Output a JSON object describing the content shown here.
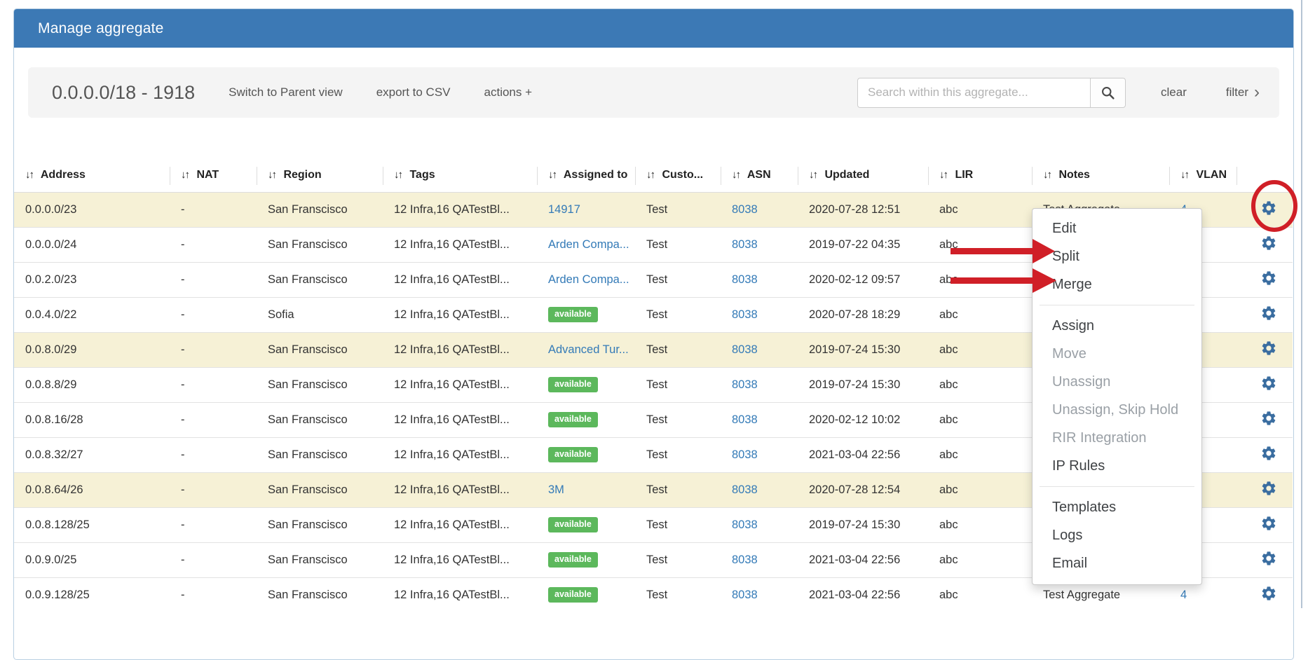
{
  "panel": {
    "title": "Manage aggregate"
  },
  "toolbar": {
    "aggregate_label": "0.0.0.0/18 - 1918",
    "switch_view_label": "Switch to Parent view",
    "export_csv_label": "export to CSV",
    "actions_label": "actions +",
    "search_placeholder": "Search within this aggregate...",
    "clear_label": "clear",
    "filter_label": "filter",
    "filter_chevron": "›"
  },
  "table": {
    "sort_icon": "↓↑",
    "columns": [
      {
        "label": "Address",
        "key": "address"
      },
      {
        "label": "NAT",
        "key": "nat"
      },
      {
        "label": "Region",
        "key": "region"
      },
      {
        "label": "Tags",
        "key": "tags"
      },
      {
        "label": "Assigned to",
        "key": "assigned_to"
      },
      {
        "label": "Custo...",
        "key": "customer"
      },
      {
        "label": "ASN",
        "key": "asn"
      },
      {
        "label": "Updated",
        "key": "updated"
      },
      {
        "label": "LIR",
        "key": "lir"
      },
      {
        "label": "Notes",
        "key": "notes"
      },
      {
        "label": "VLAN",
        "key": "vlan"
      }
    ],
    "rows": [
      {
        "address": "0.0.0.0/23",
        "nat": "-",
        "region": "San Franscisco",
        "tags": "12 Infra,16 QATestBl...",
        "assigned": {
          "kind": "link",
          "text": "14917"
        },
        "customer": "Test",
        "asn": "8038",
        "updated": "2020-07-28 12:51",
        "lir": "abc",
        "notes": "Test Aggregate",
        "vlan": "4",
        "highlighted": true
      },
      {
        "address": "0.0.0.0/24",
        "nat": "-",
        "region": "San Franscisco",
        "tags": "12 Infra,16 QATestBl...",
        "assigned": {
          "kind": "link",
          "text": "Arden Compa..."
        },
        "customer": "Test",
        "asn": "8038",
        "updated": "2019-07-22 04:35",
        "lir": "abc",
        "notes": "",
        "vlan": "",
        "highlighted": false
      },
      {
        "address": "0.0.2.0/23",
        "nat": "-",
        "region": "San Franscisco",
        "tags": "12 Infra,16 QATestBl...",
        "assigned": {
          "kind": "link",
          "text": "Arden Compa..."
        },
        "customer": "Test",
        "asn": "8038",
        "updated": "2020-02-12 09:57",
        "lir": "abc",
        "notes": "",
        "vlan": "",
        "highlighted": false
      },
      {
        "address": "0.0.4.0/22",
        "nat": "-",
        "region": "Sofia",
        "tags": "12 Infra,16 QATestBl...",
        "assigned": {
          "kind": "badge",
          "text": "available"
        },
        "customer": "Test",
        "asn": "8038",
        "updated": "2020-07-28 18:29",
        "lir": "abc",
        "notes": "",
        "vlan": "",
        "highlighted": false
      },
      {
        "address": "0.0.8.0/29",
        "nat": "-",
        "region": "San Franscisco",
        "tags": "12 Infra,16 QATestBl...",
        "assigned": {
          "kind": "link",
          "text": "Advanced Tur..."
        },
        "customer": "Test",
        "asn": "8038",
        "updated": "2019-07-24 15:30",
        "lir": "abc",
        "notes": "",
        "vlan": "",
        "highlighted": true
      },
      {
        "address": "0.0.8.8/29",
        "nat": "-",
        "region": "San Franscisco",
        "tags": "12 Infra,16 QATestBl...",
        "assigned": {
          "kind": "badge",
          "text": "available"
        },
        "customer": "Test",
        "asn": "8038",
        "updated": "2019-07-24 15:30",
        "lir": "abc",
        "notes": "",
        "vlan": "",
        "highlighted": false
      },
      {
        "address": "0.0.8.16/28",
        "nat": "-",
        "region": "San Franscisco",
        "tags": "12 Infra,16 QATestBl...",
        "assigned": {
          "kind": "badge",
          "text": "available"
        },
        "customer": "Test",
        "asn": "8038",
        "updated": "2020-02-12 10:02",
        "lir": "abc",
        "notes": "",
        "vlan": "",
        "highlighted": false
      },
      {
        "address": "0.0.8.32/27",
        "nat": "-",
        "region": "San Franscisco",
        "tags": "12 Infra,16 QATestBl...",
        "assigned": {
          "kind": "badge",
          "text": "available"
        },
        "customer": "Test",
        "asn": "8038",
        "updated": "2021-03-04 22:56",
        "lir": "abc",
        "notes": "",
        "vlan": "",
        "highlighted": false
      },
      {
        "address": "0.0.8.64/26",
        "nat": "-",
        "region": "San Franscisco",
        "tags": "12 Infra,16 QATestBl...",
        "assigned": {
          "kind": "link",
          "text": "3M"
        },
        "customer": "Test",
        "asn": "8038",
        "updated": "2020-07-28 12:54",
        "lir": "abc",
        "notes": "",
        "vlan": "",
        "highlighted": true
      },
      {
        "address": "0.0.8.128/25",
        "nat": "-",
        "region": "San Franscisco",
        "tags": "12 Infra,16 QATestBl...",
        "assigned": {
          "kind": "badge",
          "text": "available"
        },
        "customer": "Test",
        "asn": "8038",
        "updated": "2019-07-24 15:30",
        "lir": "abc",
        "notes": "",
        "vlan": "",
        "highlighted": false
      },
      {
        "address": "0.0.9.0/25",
        "nat": "-",
        "region": "San Franscisco",
        "tags": "12 Infra,16 QATestBl...",
        "assigned": {
          "kind": "badge",
          "text": "available"
        },
        "customer": "Test",
        "asn": "8038",
        "updated": "2021-03-04 22:56",
        "lir": "abc",
        "notes": "",
        "vlan": "",
        "highlighted": false
      },
      {
        "address": "0.0.9.128/25",
        "nat": "-",
        "region": "San Franscisco",
        "tags": "12 Infra,16 QATestBl...",
        "assigned": {
          "kind": "badge",
          "text": "available"
        },
        "customer": "Test",
        "asn": "8038",
        "updated": "2021-03-04 22:56",
        "lir": "abc",
        "notes": "Test Aggregate",
        "vlan": "4",
        "highlighted": false
      }
    ]
  },
  "context_menu": {
    "items": [
      {
        "label": "Edit",
        "enabled": true
      },
      {
        "label": "Split",
        "enabled": true
      },
      {
        "label": "Merge",
        "enabled": true
      },
      {
        "divider": true
      },
      {
        "label": "Assign",
        "enabled": true
      },
      {
        "label": "Move",
        "enabled": false
      },
      {
        "label": "Unassign",
        "enabled": false
      },
      {
        "label": "Unassign, Skip Hold",
        "enabled": false
      },
      {
        "label": "RIR Integration",
        "enabled": false
      },
      {
        "label": "IP Rules",
        "enabled": true
      },
      {
        "divider": true
      },
      {
        "label": "Templates",
        "enabled": true
      },
      {
        "label": "Logs",
        "enabled": true
      },
      {
        "label": "Email",
        "enabled": true
      }
    ]
  },
  "annotations": {
    "circle_target": "first-row-gear-icon",
    "arrow_1_target": "Split",
    "arrow_2_target": "Merge"
  },
  "colors": {
    "header_bar": "#3c79b5",
    "link": "#337ab7",
    "badge_green": "#5cb85c",
    "row_highlight": "#f6f1d6",
    "gear_blue": "#3a6da0",
    "annotation_red": "#d01f27"
  }
}
